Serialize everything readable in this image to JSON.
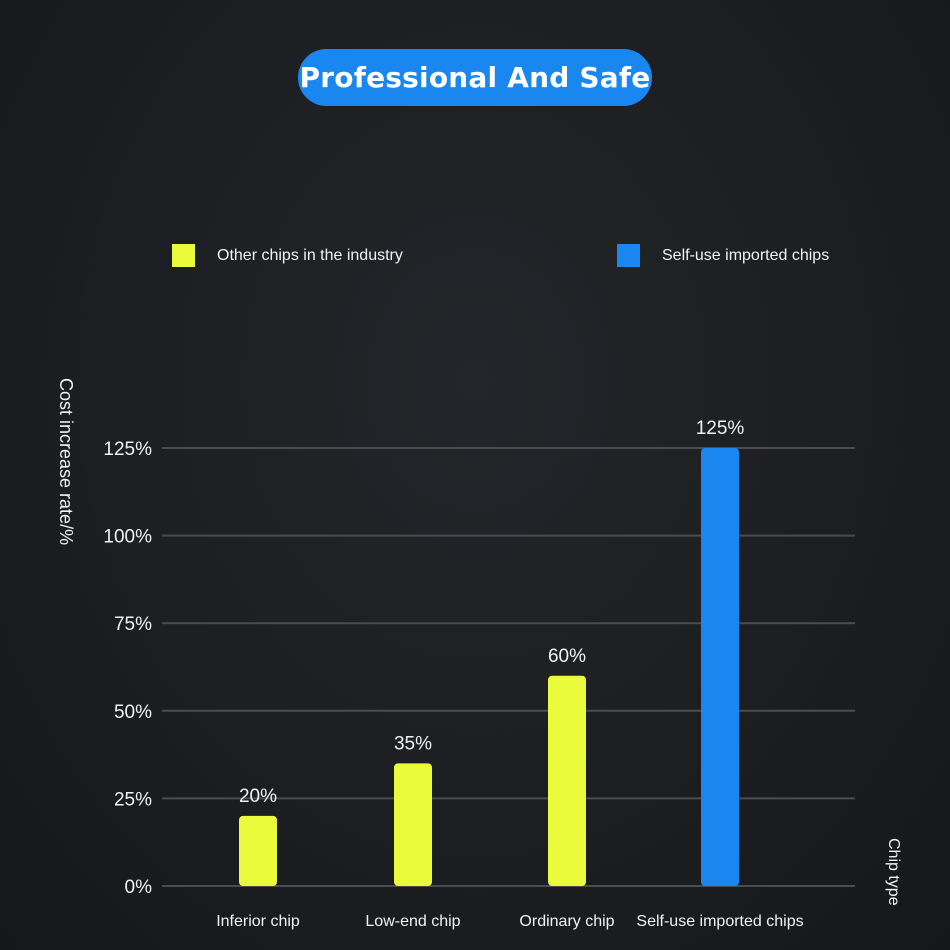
{
  "header": {
    "title": "Professional And Safe"
  },
  "colors": {
    "other": "#e9fb3a",
    "self": "#1a86f0",
    "grid": "#4a4c50",
    "text": "#f2f2f2"
  },
  "legend": [
    {
      "label": "Other chips in the industry",
      "color": "#e9fb3a"
    },
    {
      "label": "Self-use imported chips",
      "color": "#1a86f0"
    }
  ],
  "chart_data": {
    "type": "bar",
    "title": "",
    "xlabel": "Chip type",
    "ylabel": "Cost increase rate/%",
    "categories": [
      "Inferior chip",
      "Low-end chip",
      "Ordinary chip",
      "Self-use imported chips"
    ],
    "values": [
      20,
      35,
      60,
      125
    ],
    "value_labels": [
      "20%",
      "35%",
      "60%",
      "125%"
    ],
    "bar_series": [
      "Other chips in the industry",
      "Other chips in the industry",
      "Other chips in the industry",
      "Self-use imported chips"
    ],
    "yticks": [
      0,
      25,
      50,
      75,
      100,
      125
    ],
    "ytick_labels": [
      "0%",
      "25%",
      "50%",
      "75%",
      "100%",
      "125%"
    ],
    "ylim": [
      0,
      125
    ],
    "grid": true,
    "legend_position": "top"
  }
}
